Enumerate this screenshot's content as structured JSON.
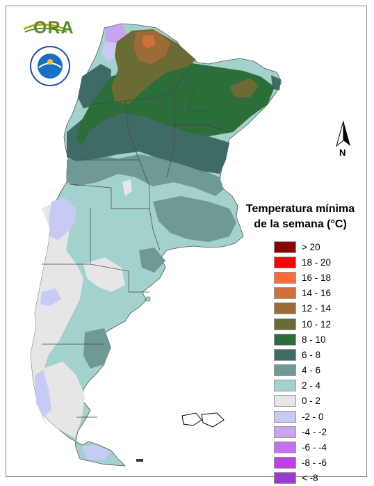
{
  "logos": {
    "ora_text": "ORA",
    "smn_text": "SERVICIO METEOROLÓGICO NACIONAL · ARGENTINA"
  },
  "north_arrow": {
    "label": "N"
  },
  "legend": {
    "title_line1": "Temperatura mínima",
    "title_line2": "de la semana (°C)",
    "items": [
      {
        "label": "> 20",
        "color": "#8b0000"
      },
      {
        "label": "18 - 20",
        "color": "#ff0000"
      },
      {
        "label": "16 - 18",
        "color": "#ff6a3a"
      },
      {
        "label": "14 - 16",
        "color": "#d2703c"
      },
      {
        "label": "12 - 14",
        "color": "#9d6b3a"
      },
      {
        "label": "10 - 12",
        "color": "#6b6b35"
      },
      {
        "label": "8 - 10",
        "color": "#2b6e3a"
      },
      {
        "label": "6 - 8",
        "color": "#3f6b66"
      },
      {
        "label": "4 - 6",
        "color": "#6f9994"
      },
      {
        "label": "2 - 4",
        "color": "#a3d1cc"
      },
      {
        "label": "0 - 2",
        "color": "#e6e6e6"
      },
      {
        "label": "-2 - 0",
        "color": "#c7caf5"
      },
      {
        "label": "-4 - -2",
        "color": "#c8a3f0"
      },
      {
        "label": "-6 - -4",
        "color": "#c46ef2"
      },
      {
        "label": "-8 - -6",
        "color": "#c040e8"
      },
      {
        "label": "< -8",
        "color": "#9a3ad4"
      }
    ]
  }
}
